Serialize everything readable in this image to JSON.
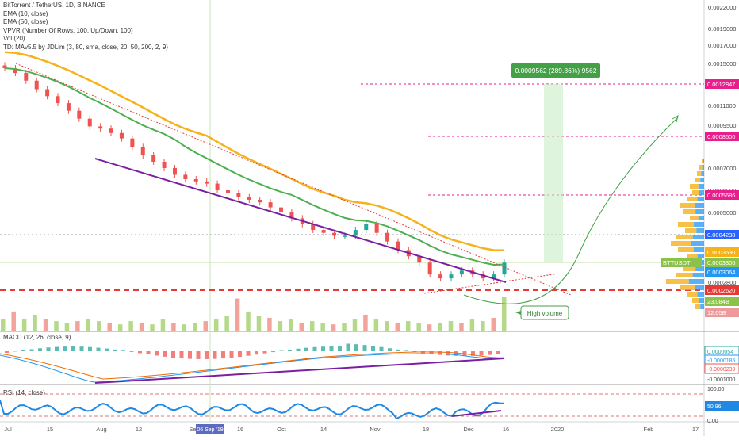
{
  "legend": {
    "title": "BitTorrent / TetherUS, 1D, BINANCE",
    "ema10": "EMA (10, close)",
    "ema50": "EMA (50, close)",
    "vpvr": "VPVR (Number Of Rows, 100, Up/Down, 100)",
    "vol": "Vol (20)",
    "td": "TD: MAv5.5 by JDLim (3, 80, sma, close, 20, 50, 200, 2, 9)"
  },
  "price_axis": {
    "ticks": [
      "0.0022000",
      "0.0019000",
      "0.0017000",
      "0.0015000",
      "0.0012847",
      "0.0011000",
      "0.0009500",
      "0.0008500",
      "0.0007000",
      "0.0006000",
      "0.0005686",
      "0.0005000",
      "0.0004238",
      "0.0003630",
      "0.0003306",
      "0.0003064",
      "0.0002800",
      "0.0002620",
      "0.0002390"
    ],
    "badges": [
      {
        "text": "0.0012847",
        "color": "#e91e8c"
      },
      {
        "text": "0.0008500",
        "color": "#e91e8c"
      },
      {
        "text": "0.0005686",
        "color": "#e91e8c"
      },
      {
        "text": "0.0004238",
        "color": "#2962ff"
      },
      {
        "text": "0.0003630",
        "color": "#f5b21b"
      },
      {
        "text": "BTTUSDT",
        "color": "#8bc34a"
      },
      {
        "text": "0.0003306",
        "color": "#8bc34a"
      },
      {
        "text": "0.0003064",
        "color": "#2196f3"
      },
      {
        "text": "0.0002620",
        "color": "#e53935"
      },
      {
        "text": "23.084B",
        "color": "#8bc34a"
      },
      {
        "text": "12.05B",
        "color": "#ef9a9a"
      }
    ]
  },
  "measure_label": "0.0009562 (289.86%) 9562",
  "annotation": "High volume",
  "macd": {
    "label": "MACD (12, 26, close, 9)",
    "ticks": [
      "0.0000054",
      "-0.0000185",
      "-0.0000239",
      "-0.0001000"
    ]
  },
  "rsi": {
    "label": "RSI (14, close)",
    "ticks": [
      "100.00",
      "50.96",
      "0.00"
    ]
  },
  "time_axis": {
    "labels": [
      "Jul",
      "15",
      "Aug",
      "12",
      "Sep",
      "06 Sep '19",
      "16",
      "Oct",
      "14",
      "Nov",
      "18",
      "Dec",
      "16",
      "2020",
      "Feb",
      "17"
    ]
  },
  "chart_data": [
    {
      "type": "candlestick",
      "title": "BitTorrent / TetherUS, 1D, BINANCE",
      "x_range": [
        "Jul 2019",
        "Feb 2020"
      ],
      "price_levels": [
        0.0012847,
        0.00085,
        0.0005686,
        0.0004238,
        0.000363,
        0.0003306,
        0.0003064,
        0.000262
      ],
      "approx_closes": [
        0.00145,
        0.0014,
        0.00132,
        0.00124,
        0.00118,
        0.00112,
        0.00106,
        0.001,
        0.00094,
        0.00092,
        0.00088,
        0.00084,
        0.0008,
        0.00076,
        0.00073,
        0.0007,
        0.00067,
        0.00065,
        0.00064,
        0.00063,
        0.0006,
        0.00058,
        0.00056,
        0.00055,
        0.00054,
        0.00052,
        0.0005,
        0.00048,
        0.00046,
        0.00044,
        0.00043,
        0.00042,
        0.00042,
        0.00044,
        0.00046,
        0.00043,
        0.0004,
        0.00037,
        0.00035,
        0.00033,
        0.0003,
        0.00029,
        0.0003,
        0.00031,
        0.0003,
        0.00029,
        0.0003,
        0.00033
      ],
      "series": [
        {
          "name": "EMA (10, close)",
          "color": "#4caf50"
        },
        {
          "name": "EMA (50, close)",
          "color": "#f5b21b"
        }
      ],
      "measure": {
        "change": "0.0009562",
        "percent": "289.86%",
        "bars": "9562"
      }
    },
    {
      "type": "bar",
      "title": "Vol (20)",
      "values_relative": [
        0.3,
        0.55,
        0.3,
        0.45,
        0.3,
        0.25,
        0.2,
        0.25,
        0.3,
        0.25,
        0.2,
        0.15,
        0.25,
        0.2,
        0.15,
        0.3,
        0.2,
        0.15,
        0.2,
        0.25,
        0.3,
        0.4,
        0.95,
        0.55,
        0.4,
        0.35,
        0.25,
        0.3,
        0.2,
        0.25,
        0.2,
        0.15,
        0.2,
        0.3,
        0.45,
        0.3,
        0.25,
        0.2,
        0.25,
        0.2,
        0.15,
        0.2,
        0.25,
        0.2,
        0.3,
        0.25,
        0.35,
        1.0
      ]
    },
    {
      "type": "line",
      "title": "MACD (12, 26, close, 9)",
      "values": [
        5.4e-06,
        -1.85e-05,
        -2.39e-05
      ]
    },
    {
      "type": "line",
      "title": "RSI (14, close)",
      "ylim": [
        0,
        100
      ],
      "values": [
        50.96
      ]
    }
  ]
}
